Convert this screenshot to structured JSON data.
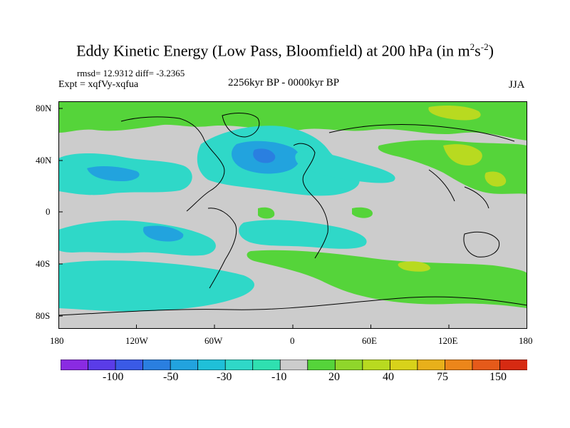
{
  "title": {
    "text": "Eddy Kinetic Energy (Low Pass, Bloomfield) at 200 hPa (in m",
    "sup1": "2",
    "mid": "s",
    "sup2": "-2",
    "end": ")"
  },
  "stats": "rmsd= 12.9312 diff= -3.2365",
  "expt": "Expt = xqfVy-xqfua",
  "period": "2256kyr BP - 0000kyr BP",
  "season": "JJA",
  "lat_ticks": [
    "80N",
    "40N",
    "0",
    "40S",
    "80S"
  ],
  "lon_ticks": [
    "180",
    "120W",
    "60W",
    "0",
    "60E",
    "120E",
    "180"
  ],
  "colorbar": {
    "labels": [
      "-100",
      "-50",
      "-30",
      "-10",
      "20",
      "40",
      "75",
      "150"
    ],
    "colors": [
      "#8a2be2",
      "#5a3ce8",
      "#3a5ae6",
      "#2a7fe0",
      "#22a3de",
      "#1fc0d8",
      "#2fd8c8",
      "#2fe0b0",
      "#cccccc",
      "#55d43a",
      "#8fd62b",
      "#b8da20",
      "#d8d21a",
      "#e8b01a",
      "#ec861a",
      "#e55a1a",
      "#d62a12"
    ]
  },
  "map_colors": {
    "neutral": "#cccccc",
    "cyan": "#2fd8c8",
    "blue": "#22a3de",
    "deep_blue": "#2a7fe0",
    "green": "#55d43a",
    "yellow_green": "#b8da20"
  }
}
